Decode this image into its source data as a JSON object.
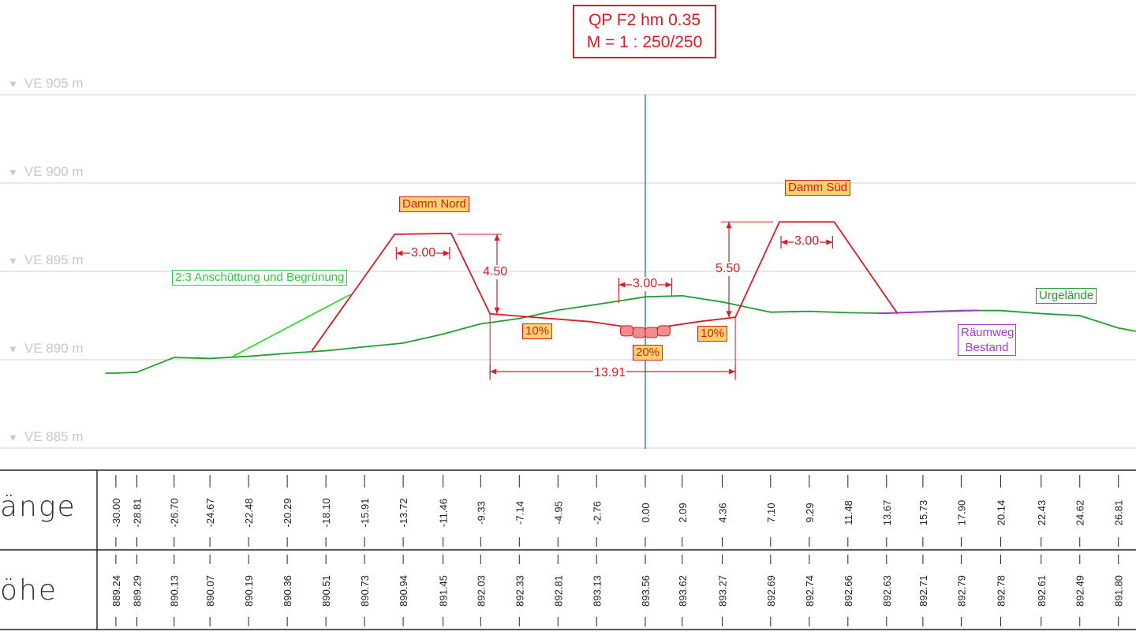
{
  "title": {
    "line1": "QP F2 hm 0.35",
    "line2": "M = 1 : 250/250"
  },
  "levels": [
    {
      "label": "VE 905 m",
      "value": 905
    },
    {
      "label": "VE 900 m",
      "value": 900
    },
    {
      "label": "VE 895 m",
      "value": 895
    },
    {
      "label": "VE 890 m",
      "value": 890
    },
    {
      "label": "VE 885 m",
      "value": 885
    }
  ],
  "rows": {
    "laenge_label": "änge",
    "hoehe_label": "öhe"
  },
  "stations": [
    {
      "x": -30.0,
      "laenge": "-30.00",
      "hoehe": "889.24"
    },
    {
      "x": -28.81,
      "laenge": "-28.81",
      "hoehe": "889.29"
    },
    {
      "x": -26.7,
      "laenge": "-26.70",
      "hoehe": "890.13"
    },
    {
      "x": -24.67,
      "laenge": "-24.67",
      "hoehe": "890.07"
    },
    {
      "x": -22.48,
      "laenge": "-22.48",
      "hoehe": "890.19"
    },
    {
      "x": -20.29,
      "laenge": "-20.29",
      "hoehe": "890.36"
    },
    {
      "x": -18.1,
      "laenge": "-18.10",
      "hoehe": "890.51"
    },
    {
      "x": -15.91,
      "laenge": "-15.91",
      "hoehe": "890.73"
    },
    {
      "x": -13.72,
      "laenge": "-13.72",
      "hoehe": "890.94"
    },
    {
      "x": -11.46,
      "laenge": "-11.46",
      "hoehe": "891.45"
    },
    {
      "x": -9.33,
      "laenge": "-9.33",
      "hoehe": "892.03"
    },
    {
      "x": -7.14,
      "laenge": "-7.14",
      "hoehe": "892.33"
    },
    {
      "x": -4.95,
      "laenge": "-4.95",
      "hoehe": "892.81"
    },
    {
      "x": -2.76,
      "laenge": "-2.76",
      "hoehe": "893.13"
    },
    {
      "x": 0.0,
      "laenge": "0.00",
      "hoehe": "893.56"
    },
    {
      "x": 2.09,
      "laenge": "2.09",
      "hoehe": "893.62"
    },
    {
      "x": 4.36,
      "laenge": "4.36",
      "hoehe": "893.27"
    },
    {
      "x": 7.1,
      "laenge": "7.10",
      "hoehe": "892.69"
    },
    {
      "x": 9.29,
      "laenge": "9.29",
      "hoehe": "892.74"
    },
    {
      "x": 11.48,
      "laenge": "11.48",
      "hoehe": "892.66"
    },
    {
      "x": 13.67,
      "laenge": "13.67",
      "hoehe": "892.63"
    },
    {
      "x": 15.73,
      "laenge": "15.73",
      "hoehe": "892.71"
    },
    {
      "x": 17.9,
      "laenge": "17.90",
      "hoehe": "892.79"
    },
    {
      "x": 20.14,
      "laenge": "20.14",
      "hoehe": "892.78"
    },
    {
      "x": 22.43,
      "laenge": "22.43",
      "hoehe": "892.61"
    },
    {
      "x": 24.62,
      "laenge": "24.62",
      "hoehe": "892.49"
    },
    {
      "x": 26.81,
      "laenge": "26.81",
      "hoehe": "891.80"
    }
  ],
  "labels": {
    "damm_nord": "Damm Nord",
    "damm_sued": "Damm Süd",
    "anschuettung": "2:3 Anschüttung und Begrünung",
    "urgelaende": "Urgelände",
    "raeumweg_line1": "Räumweg",
    "raeumweg_line2": "Bestand",
    "crest_nord": "3.00",
    "crest_sued": "3.00",
    "bottom_width": "3.00",
    "height_nord": "4.50",
    "height_sued": "5.50",
    "total_width": "13.91",
    "slope_left": "10%",
    "slope_right": "10%",
    "slope_center": "20%"
  },
  "colors": {
    "design": "#d81b24",
    "terrain": "#1e9e2e",
    "fill": "#33dd33",
    "axis": "#1f7fc0",
    "path": "#a83ad6",
    "tag_fill": "#ffd36b"
  }
}
